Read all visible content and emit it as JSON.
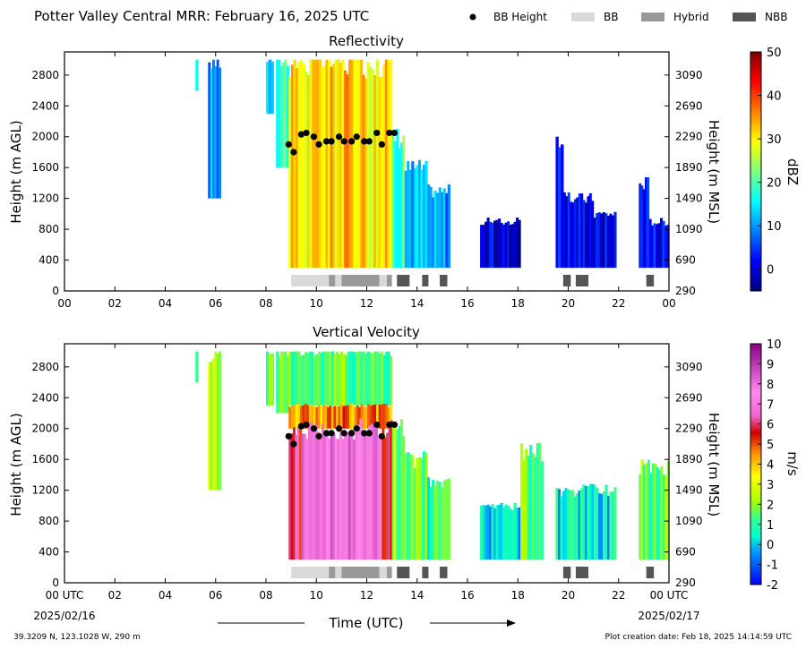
{
  "header": {
    "title": "Potter Valley Central MRR:  February 16, 2025 UTC",
    "legend": [
      {
        "label": "BB Height",
        "marker": "dot",
        "color": "#000000"
      },
      {
        "label": "BB",
        "marker": "box",
        "color": "#d9d9d9"
      },
      {
        "label": "Hybrid",
        "marker": "box",
        "color": "#999999"
      },
      {
        "label": "NBB",
        "marker": "box",
        "color": "#555555"
      }
    ]
  },
  "footer": {
    "location": "39.3209 N, 123.1028 W, 290 m",
    "creation": "Plot creation date: Feb 18, 2025 14:14:59 UTC",
    "xlabel": "Time (UTC)",
    "start_label": "00 UTC",
    "start_date": "2025/02/16",
    "end_label": "00 UTC",
    "end_date": "2025/02/17"
  },
  "chart_data": [
    {
      "type": "heatmap",
      "title": "Reflectivity",
      "ylabel": "Height (m AGL)",
      "ylabel_right": "Height (m MSL)",
      "xlim": [
        0,
        24
      ],
      "ylim": [
        0,
        3100
      ],
      "x_ticks": [
        "00",
        "02",
        "04",
        "06",
        "08",
        "10",
        "12",
        "14",
        "16",
        "18",
        "20",
        "22",
        "00"
      ],
      "y_ticks": [
        0,
        400,
        800,
        1200,
        1600,
        2000,
        2400,
        2800
      ],
      "y_ticks_right": [
        290,
        690,
        1090,
        1490,
        1890,
        2290,
        2690,
        3090
      ],
      "colorbar": {
        "label": "dBZ",
        "min": -5,
        "max": 50,
        "ticks": [
          0,
          10,
          20,
          30,
          40,
          50
        ],
        "colormap": "jet"
      },
      "echo_segments": [
        {
          "x": [
            5.2,
            5.3
          ],
          "y": [
            2600,
            3000
          ],
          "value": 12
        },
        {
          "x": [
            5.7,
            6.2
          ],
          "y": [
            1200,
            3000
          ],
          "value": 10
        },
        {
          "x": [
            8.0,
            8.3
          ],
          "y": [
            2300,
            3000
          ],
          "value": 15
        },
        {
          "x": [
            8.4,
            8.9
          ],
          "y": [
            1600,
            3000
          ],
          "value": 20
        },
        {
          "x": [
            8.9,
            10.0
          ],
          "y": [
            300,
            3000
          ],
          "value": 30
        },
        {
          "x": [
            10.0,
            11.0
          ],
          "y": [
            300,
            3000
          ],
          "value": 32
        },
        {
          "x": [
            11.0,
            12.0
          ],
          "y": [
            300,
            3000
          ],
          "value": 33
        },
        {
          "x": [
            12.0,
            13.0
          ],
          "y": [
            300,
            3000
          ],
          "value": 31
        },
        {
          "x": [
            13.0,
            13.5
          ],
          "y": [
            300,
            2000
          ],
          "value": 20
        },
        {
          "x": [
            13.5,
            14.4
          ],
          "y": [
            300,
            1600
          ],
          "value": 12
        },
        {
          "x": [
            14.4,
            15.3
          ],
          "y": [
            300,
            1300
          ],
          "value": 10
        },
        {
          "x": [
            16.5,
            18.1
          ],
          "y": [
            300,
            900
          ],
          "value": 0
        },
        {
          "x": [
            19.5,
            19.8
          ],
          "y": [
            300,
            2000
          ],
          "value": 3
        },
        {
          "x": [
            19.8,
            21.0
          ],
          "y": [
            300,
            1200
          ],
          "value": 2
        },
        {
          "x": [
            21.0,
            21.9
          ],
          "y": [
            300,
            1000
          ],
          "value": 1
        },
        {
          "x": [
            22.8,
            23.2
          ],
          "y": [
            300,
            1400
          ],
          "value": 4
        },
        {
          "x": [
            23.2,
            24.0
          ],
          "y": [
            300,
            900
          ],
          "value": 3
        }
      ],
      "bb_height": {
        "x": [
          8.9,
          9.1,
          9.4,
          9.6,
          9.9,
          10.1,
          10.4,
          10.6,
          10.9,
          11.1,
          11.4,
          11.6,
          11.9,
          12.1,
          12.4,
          12.6,
          12.9,
          13.1
        ],
        "y": [
          1900,
          1800,
          2030,
          2050,
          2000,
          1900,
          1940,
          1940,
          2000,
          1940,
          1940,
          2000,
          1940,
          1940,
          2050,
          1900,
          2050,
          2050
        ]
      },
      "bb_type": [
        {
          "start": 9.0,
          "end": 10.5,
          "type": "BB"
        },
        {
          "start": 10.5,
          "end": 10.75,
          "type": "Hybrid"
        },
        {
          "start": 10.75,
          "end": 11.0,
          "type": "BB"
        },
        {
          "start": 11.0,
          "end": 12.5,
          "type": "Hybrid"
        },
        {
          "start": 12.5,
          "end": 12.8,
          "type": "BB"
        },
        {
          "start": 12.8,
          "end": 13.0,
          "type": "Hybrid"
        },
        {
          "start": 13.2,
          "end": 13.7,
          "type": "NBB"
        },
        {
          "start": 14.2,
          "end": 14.45,
          "type": "NBB"
        },
        {
          "start": 14.9,
          "end": 15.2,
          "type": "NBB"
        },
        {
          "start": 19.8,
          "end": 20.1,
          "type": "NBB"
        },
        {
          "start": 20.3,
          "end": 20.8,
          "type": "NBB"
        },
        {
          "start": 23.1,
          "end": 23.4,
          "type": "NBB"
        }
      ]
    },
    {
      "type": "heatmap",
      "title": "Vertical Velocity",
      "ylabel": "Height (m AGL)",
      "ylabel_right": "Height (m MSL)",
      "xlim": [
        0,
        24
      ],
      "ylim": [
        0,
        3100
      ],
      "x_ticks": [
        "00 UTC",
        "02",
        "04",
        "06",
        "08",
        "10",
        "12",
        "14",
        "16",
        "18",
        "20",
        "22",
        "00 UTC"
      ],
      "y_ticks": [
        0,
        400,
        800,
        1200,
        1600,
        2000,
        2400,
        2800
      ],
      "y_ticks_right": [
        290,
        690,
        1090,
        1490,
        1890,
        2290,
        2690,
        3090
      ],
      "colorbar": {
        "label": "m/s",
        "min": -2,
        "max": 10,
        "ticks": [
          -2,
          -1,
          0,
          1,
          2,
          3,
          4,
          5,
          6,
          7,
          8,
          9,
          10
        ],
        "colormap": "velocity"
      },
      "echo_segments": [
        {
          "x": [
            5.2,
            5.3
          ],
          "y": [
            2600,
            3000
          ],
          "value": 2
        },
        {
          "x": [
            5.7,
            6.2
          ],
          "y": [
            1200,
            3000
          ],
          "value": 2.5
        },
        {
          "x": [
            8.0,
            8.3
          ],
          "y": [
            2300,
            3000
          ],
          "value": 1.5
        },
        {
          "x": [
            8.4,
            8.9
          ],
          "y": [
            2200,
            3000
          ],
          "value": 1.8
        },
        {
          "x": [
            8.9,
            13.0
          ],
          "y": [
            2300,
            3000
          ],
          "value": 1.5
        },
        {
          "x": [
            8.9,
            13.0
          ],
          "y": [
            2000,
            2300
          ],
          "value": 4.5
        },
        {
          "x": [
            8.9,
            9.4
          ],
          "y": [
            300,
            2000
          ],
          "value": 6
        },
        {
          "x": [
            9.4,
            12.6
          ],
          "y": [
            300,
            2000
          ],
          "value": 7.6
        },
        {
          "x": [
            12.6,
            13.1
          ],
          "y": [
            300,
            2000
          ],
          "value": 6
        },
        {
          "x": [
            13.0,
            13.5
          ],
          "y": [
            300,
            2000
          ],
          "value": 2
        },
        {
          "x": [
            13.5,
            14.4
          ],
          "y": [
            300,
            1600
          ],
          "value": 1.5
        },
        {
          "x": [
            14.4,
            15.3
          ],
          "y": [
            300,
            1300
          ],
          "value": 1.2
        },
        {
          "x": [
            16.5,
            18.1
          ],
          "y": [
            300,
            1000
          ],
          "value": 0.2
        },
        {
          "x": [
            18.1,
            19.0
          ],
          "y": [
            300,
            1700
          ],
          "value": 1.5
        },
        {
          "x": [
            19.5,
            21.9
          ],
          "y": [
            300,
            1200
          ],
          "value": 0.4
        },
        {
          "x": [
            22.8,
            24.0
          ],
          "y": [
            300,
            1500
          ],
          "value": 1.5
        }
      ],
      "bb_height": {
        "x": [
          8.9,
          9.1,
          9.4,
          9.6,
          9.9,
          10.1,
          10.4,
          10.6,
          10.9,
          11.1,
          11.4,
          11.6,
          11.9,
          12.1,
          12.4,
          12.6,
          12.9,
          13.1
        ],
        "y": [
          1900,
          1800,
          2030,
          2050,
          2000,
          1900,
          1940,
          1940,
          2000,
          1940,
          1940,
          2000,
          1940,
          1940,
          2050,
          1900,
          2050,
          2050
        ]
      },
      "bb_type": [
        {
          "start": 9.0,
          "end": 10.5,
          "type": "BB"
        },
        {
          "start": 10.5,
          "end": 10.75,
          "type": "Hybrid"
        },
        {
          "start": 10.75,
          "end": 11.0,
          "type": "BB"
        },
        {
          "start": 11.0,
          "end": 12.5,
          "type": "Hybrid"
        },
        {
          "start": 12.5,
          "end": 12.8,
          "type": "BB"
        },
        {
          "start": 12.8,
          "end": 13.0,
          "type": "Hybrid"
        },
        {
          "start": 13.2,
          "end": 13.7,
          "type": "NBB"
        },
        {
          "start": 14.2,
          "end": 14.45,
          "type": "NBB"
        },
        {
          "start": 14.9,
          "end": 15.2,
          "type": "NBB"
        },
        {
          "start": 19.8,
          "end": 20.1,
          "type": "NBB"
        },
        {
          "start": 20.3,
          "end": 20.8,
          "type": "NBB"
        },
        {
          "start": 23.1,
          "end": 23.4,
          "type": "NBB"
        }
      ]
    }
  ]
}
